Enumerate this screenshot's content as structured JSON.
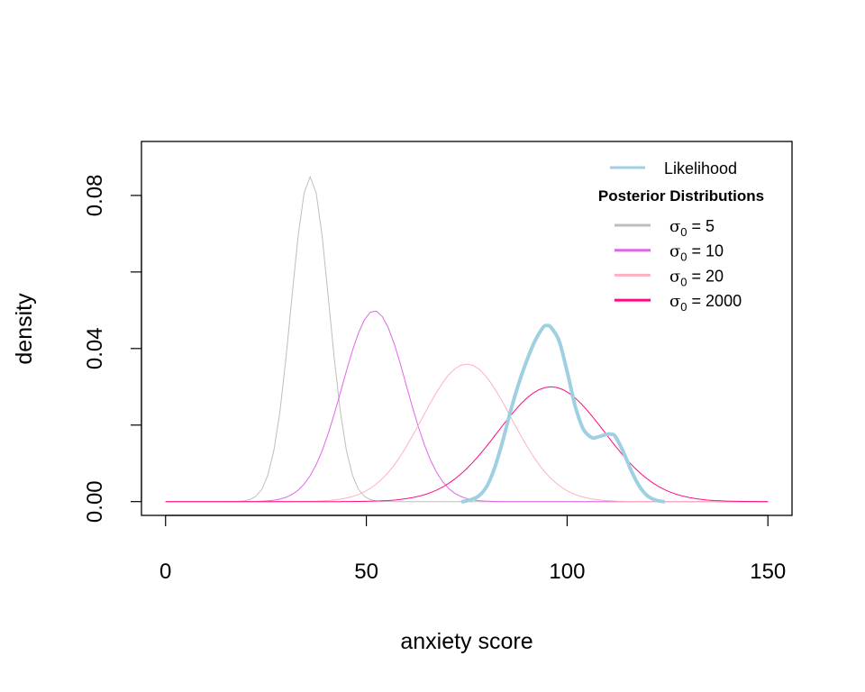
{
  "chart_data": {
    "type": "line",
    "title": "",
    "xlabel": "anxiety score",
    "ylabel": "density",
    "xlim": [
      -6,
      156
    ],
    "ylim": [
      -0.0036,
      0.0941
    ],
    "x_ticks": [
      0,
      50,
      100,
      150
    ],
    "x_tick_labels": [
      "0",
      "50",
      "100",
      "150"
    ],
    "y_ticks": [
      0,
      0.02,
      0.04,
      0.06,
      0.08
    ],
    "y_tick_labels": [
      "0.00",
      "",
      "0.04",
      "",
      "0.08"
    ],
    "grid": false,
    "legend_placement": "top-right",
    "legend_title": "Posterior Distributions",
    "likelihood": {
      "name": "Likelihood",
      "color": "#9fd0e2",
      "x": [
        74,
        76,
        78,
        80,
        82,
        84,
        86,
        88,
        90,
        92,
        94,
        95,
        96,
        98,
        100,
        102,
        104,
        106,
        107,
        108,
        110,
        111,
        112,
        114,
        116,
        118,
        120,
        122,
        124
      ],
      "y": [
        0,
        0.0005,
        0.0015,
        0.004,
        0.009,
        0.016,
        0.024,
        0.031,
        0.037,
        0.042,
        0.0455,
        0.046,
        0.0455,
        0.042,
        0.034,
        0.025,
        0.019,
        0.0168,
        0.0167,
        0.017,
        0.0176,
        0.0176,
        0.017,
        0.013,
        0.008,
        0.004,
        0.0015,
        0.0004,
        0
      ]
    },
    "series": [
      {
        "name": "σ0 = 5",
        "label_sym": "σ",
        "label_sub": "0",
        "label_rest": " = 5",
        "color": "#bebebe",
        "distribution": "normal",
        "mean": 36,
        "sd": 4.7,
        "x_range": [
          0,
          150
        ]
      },
      {
        "name": "σ0 = 10",
        "label_sym": "σ",
        "label_sub": "0",
        "label_rest": " = 10",
        "color": "#e066e8",
        "distribution": "normal",
        "mean": 52,
        "sd": 8.0,
        "x_range": [
          0,
          150
        ]
      },
      {
        "name": "σ0 = 20",
        "label_sym": "σ",
        "label_sub": "0",
        "label_rest": " = 20",
        "color": "#ffb0c0",
        "distribution": "normal",
        "mean": 75,
        "sd": 11.1,
        "x_range": [
          0,
          150
        ]
      },
      {
        "name": "σ0 = 2000",
        "label_sym": "σ",
        "label_sub": "0",
        "label_rest": " = 2000",
        "color": "#ff0a84",
        "distribution": "normal",
        "mean": 96,
        "sd": 13.3,
        "x_range": [
          0,
          150
        ]
      }
    ]
  }
}
